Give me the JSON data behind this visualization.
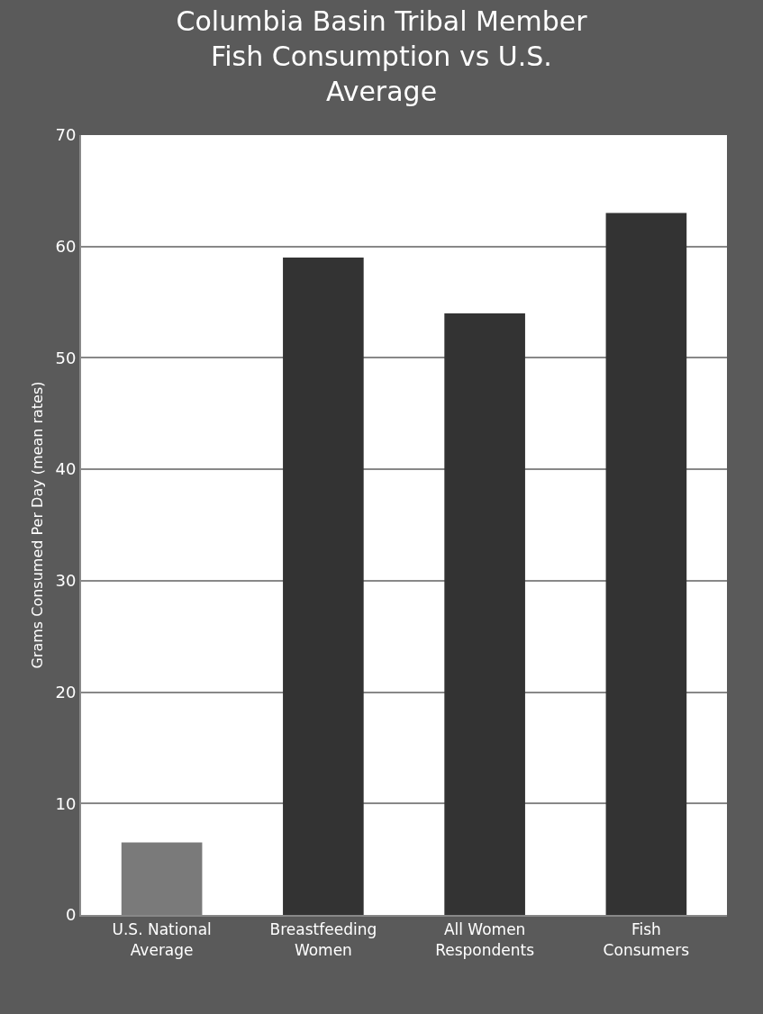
{
  "chart_data": {
    "type": "bar",
    "title": "Columbia Basin Tribal Member Fish Consumption vs U.S. Average",
    "ylabel": "Grams Consumed Per Day (mean rates)",
    "categories": [
      "U.S. National Average",
      "Breastfeeding Women",
      "All Women Respondents",
      "Fish Consumers"
    ],
    "values": [
      6.5,
      59,
      54,
      63
    ],
    "colors": [
      "#7a7a7a",
      "#333333",
      "#333333",
      "#333333"
    ],
    "ylim": [
      0,
      70
    ],
    "yticks": [
      0,
      10,
      20,
      30,
      40,
      50,
      60,
      70
    ],
    "grid": "y"
  }
}
